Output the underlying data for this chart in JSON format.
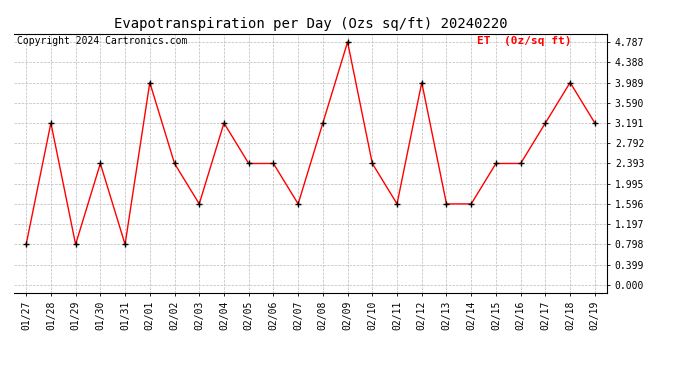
{
  "title": "Evapotranspiration per Day (Ozs sq/ft) 20240220",
  "copyright_text": "Copyright 2024 Cartronics.com",
  "legend_label": "ET  (0z/sq ft)",
  "dates": [
    "01/27",
    "01/28",
    "01/29",
    "01/30",
    "01/31",
    "02/01",
    "02/02",
    "02/03",
    "02/04",
    "02/05",
    "02/06",
    "02/07",
    "02/08",
    "02/09",
    "02/10",
    "02/11",
    "02/12",
    "02/13",
    "02/14",
    "02/15",
    "02/16",
    "02/17",
    "02/18",
    "02/19"
  ],
  "values": [
    0.798,
    3.191,
    0.798,
    2.393,
    0.798,
    3.989,
    2.393,
    1.596,
    3.191,
    2.393,
    2.393,
    1.596,
    3.191,
    4.787,
    2.393,
    1.596,
    3.989,
    1.596,
    1.596,
    2.393,
    2.393,
    3.191,
    3.989,
    3.191
  ],
  "ylim_min": -0.15,
  "ylim_max": 4.95,
  "yticks": [
    0.0,
    0.399,
    0.798,
    1.197,
    1.596,
    1.995,
    2.393,
    2.792,
    3.191,
    3.59,
    3.989,
    4.388,
    4.787
  ],
  "line_color": "red",
  "marker_color": "black",
  "grid_color": "#bbbbbb",
  "background_color": "#ffffff",
  "title_fontsize": 10,
  "copyright_fontsize": 7,
  "tick_fontsize": 7,
  "legend_fontsize": 8,
  "fig_width": 6.9,
  "fig_height": 3.75,
  "dpi": 100
}
